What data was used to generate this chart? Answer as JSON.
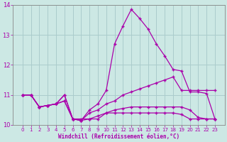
{
  "xlabel": "Windchill (Refroidissement éolien,°C)",
  "bg_color": "#cce8e4",
  "grid_color": "#aacccc",
  "line_color": "#aa00aa",
  "x": [
    0,
    1,
    2,
    3,
    4,
    5,
    6,
    7,
    8,
    9,
    10,
    11,
    12,
    13,
    14,
    15,
    16,
    17,
    18,
    19,
    20,
    21,
    22,
    23
  ],
  "series1": [
    11.0,
    11.0,
    10.6,
    10.65,
    10.7,
    11.0,
    10.2,
    10.2,
    10.2,
    10.2,
    10.4,
    10.4,
    10.4,
    10.4,
    10.4,
    10.4,
    10.4,
    10.4,
    10.4,
    10.35,
    10.2,
    10.2,
    10.2,
    10.2
  ],
  "series2": [
    11.0,
    11.0,
    10.6,
    10.65,
    10.7,
    11.0,
    10.2,
    10.15,
    10.5,
    10.7,
    11.15,
    12.7,
    13.3,
    13.85,
    13.55,
    13.2,
    12.7,
    12.3,
    11.85,
    11.8,
    11.1,
    11.1,
    11.05,
    10.2
  ],
  "series3": [
    11.0,
    11.0,
    10.6,
    10.65,
    10.7,
    10.8,
    10.2,
    10.15,
    10.4,
    10.5,
    10.7,
    10.8,
    11.0,
    11.1,
    11.2,
    11.3,
    11.4,
    11.5,
    11.6,
    11.15,
    11.15,
    11.15,
    11.15,
    11.15
  ],
  "series4": [
    11.0,
    11.0,
    10.6,
    10.65,
    10.7,
    10.8,
    10.2,
    10.15,
    10.2,
    10.3,
    10.4,
    10.5,
    10.55,
    10.6,
    10.6,
    10.6,
    10.6,
    10.6,
    10.6,
    10.6,
    10.5,
    10.25,
    10.2,
    10.2
  ],
  "ylim": [
    10.0,
    14.0
  ],
  "yticks": [
    10,
    11,
    12,
    13,
    14
  ],
  "xticks": [
    0,
    1,
    2,
    3,
    4,
    5,
    6,
    7,
    8,
    9,
    10,
    11,
    12,
    13,
    14,
    15,
    16,
    17,
    18,
    19,
    20,
    21,
    22,
    23
  ]
}
